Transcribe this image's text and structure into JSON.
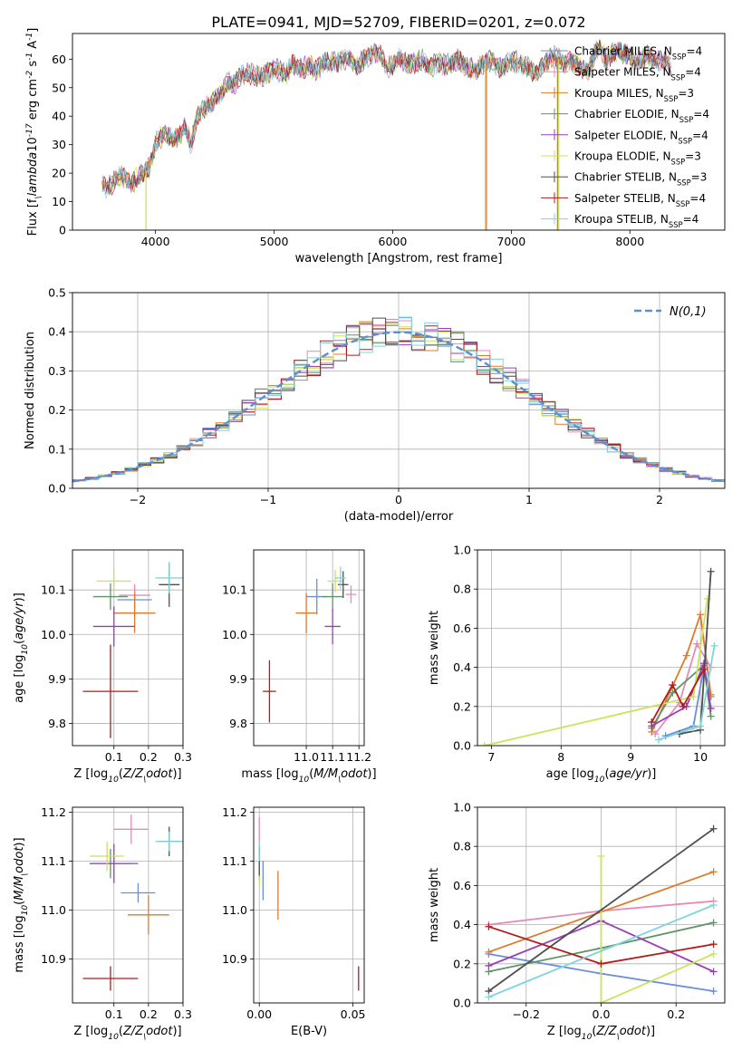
{
  "figure_title": "PLATE=0941, MJD=52709, FIBERID=0201, z=0.072",
  "models": [
    {
      "name": "Chabrier MILES, N$_{SSP}$=4",
      "display": "Chabrier MILES, N",
      "sub": "SSP",
      "suffix": "=4",
      "color": "#6a8fd8"
    },
    {
      "name": "Salpeter MILES, N$_{SSP}$=4",
      "display": "Salpeter MILES, N",
      "sub": "SSP",
      "suffix": "=4",
      "color": "#e38db5"
    },
    {
      "name": "Kroupa MILES, N$_{SSP}$=3",
      "display": "Kroupa MILES, N",
      "sub": "SSP",
      "suffix": "=3",
      "color": "#dd7b2a"
    },
    {
      "name": "Chabrier ELODIE, N$_{SSP}$=4",
      "display": "Chabrier ELODIE, N",
      "sub": "SSP",
      "suffix": "=4",
      "color": "#5f9466"
    },
    {
      "name": "Salpeter ELODIE, N$_{SSP}$=4",
      "display": "Salpeter ELODIE, N",
      "sub": "SSP",
      "suffix": "=4",
      "color": "#9a3db8"
    },
    {
      "name": "Kroupa ELODIE, N$_{SSP}$=3",
      "display": "Kroupa ELODIE, N",
      "sub": "SSP",
      "suffix": "=3",
      "color": "#cde25a"
    },
    {
      "name": "Chabrier STELIB, N$_{SSP}$=3",
      "display": "Chabrier STELIB, N",
      "sub": "SSP",
      "suffix": "=3",
      "color": "#4e4e4e"
    },
    {
      "name": "Salpeter STELIB, N$_{SSP}$=4",
      "display": "Salpeter STELIB, N",
      "sub": "SSP",
      "suffix": "=4",
      "color": "#b41b1b"
    },
    {
      "name": "Kroupa STELIB, N$_{SSP}$=4",
      "display": "Kroupa STELIB, N",
      "sub": "SSP",
      "suffix": "=4",
      "color": "#7fd5dc"
    }
  ],
  "chart_data": [
    {
      "type": "line",
      "id": "spectrum",
      "xlabel": "wavelength [Angstrom, rest frame]",
      "ylabel": "Flux [f$_\\lambda$10$^{-17}$ erg cm$^{-2}$ s$^{-1}$ A$^{-1}$]",
      "xlim": [
        3300,
        8800
      ],
      "ylim": [
        0,
        69
      ],
      "xticks": [
        4000,
        5000,
        6000,
        7000,
        8000
      ],
      "yticks": [
        0,
        10,
        20,
        30,
        40,
        50,
        60
      ],
      "grid": false,
      "legend_placement": "top-right",
      "x": [
        3550,
        3600,
        3650,
        3700,
        3750,
        3800,
        3850,
        3900,
        3950,
        4000,
        4050,
        4100,
        4150,
        4200,
        4250,
        4300,
        4350,
        4400,
        4450,
        4500,
        4550,
        4600,
        4650,
        4700,
        4750,
        4800,
        4850,
        4900,
        4950,
        5000,
        5050,
        5100,
        5150,
        5200,
        5250,
        5300,
        5350,
        5400,
        5450,
        5500,
        5550,
        5600,
        5650,
        5700,
        5750,
        5800,
        5850,
        5900,
        5950,
        6000,
        6050,
        6100,
        6150,
        6200,
        6250,
        6300,
        6350,
        6400,
        6450,
        6500,
        6550,
        6600,
        6650,
        6700,
        6750,
        6800,
        6850,
        6900,
        6950,
        7000,
        7050,
        7100,
        7150,
        7200,
        7250,
        7300,
        7350,
        7400,
        7450,
        7500,
        7550,
        7600,
        7650,
        7700,
        7750,
        7800,
        7850,
        7900,
        7950,
        8000,
        8050,
        8100,
        8150,
        8200,
        8250,
        8300,
        8350
      ],
      "flux": [
        16,
        15,
        17,
        19,
        18,
        16,
        19,
        20,
        22,
        30,
        33,
        34,
        32,
        33,
        36,
        30,
        40,
        42,
        44,
        46,
        48,
        52,
        51,
        53,
        55,
        55,
        54,
        54,
        55,
        57,
        56,
        55,
        58,
        57,
        57,
        58,
        56,
        58,
        59,
        59,
        59,
        60,
        60,
        57,
        60,
        61,
        62,
        62,
        57,
        58,
        60,
        59,
        58,
        59,
        60,
        56,
        58,
        59,
        58,
        58,
        60,
        58,
        57,
        56,
        58,
        59,
        59,
        57,
        58,
        59,
        59,
        58,
        57,
        55,
        57,
        59,
        61,
        60,
        58,
        59,
        58,
        57,
        55,
        62,
        64,
        60,
        62,
        63,
        62,
        61,
        59,
        60,
        61,
        59,
        60,
        60,
        57
      ],
      "dips": [
        {
          "model": "Kroupa ELODIE, N$_{SSP}$=3",
          "x": 3920,
          "y": 0
        },
        {
          "model": "Kroupa ELODIE, N$_{SSP}$=3",
          "x": 6780,
          "y": 0
        },
        {
          "model": "Kroupa MILES, N$_{SSP}$=3",
          "x": 6790,
          "y": 0
        },
        {
          "model": "Kroupa MILES, N$_{SSP}$=3",
          "x": 7390,
          "y": 0
        },
        {
          "model": "Kroupa ELODIE, N$_{SSP}$=3",
          "x": 7400,
          "y": 0
        }
      ]
    },
    {
      "type": "histogram",
      "id": "residuals",
      "xlabel": "(data-model)/error",
      "ylabel": "Normed distribution",
      "xlim": [
        -2.5,
        2.5
      ],
      "ylim": [
        0,
        0.5
      ],
      "xticks": [
        -2,
        -1,
        0,
        1,
        2
      ],
      "yticks": [
        0.0,
        0.1,
        0.2,
        0.3,
        0.4,
        0.5
      ],
      "grid": true,
      "bin_width": 0.1,
      "bin_left_edges": [
        -2.5,
        -2.4,
        -2.3,
        -2.2,
        -2.1,
        -2.0,
        -1.9,
        -1.8,
        -1.7,
        -1.6,
        -1.5,
        -1.4,
        -1.3,
        -1.2,
        -1.1,
        -1.0,
        -0.9,
        -0.8,
        -0.7,
        -0.6,
        -0.5,
        -0.4,
        -0.3,
        -0.2,
        -0.1,
        0.0,
        0.1,
        0.2,
        0.3,
        0.4,
        0.5,
        0.6,
        0.7,
        0.8,
        0.9,
        1.0,
        1.1,
        1.2,
        1.3,
        1.4,
        1.5,
        1.6,
        1.7,
        1.8,
        1.9,
        2.0,
        2.1,
        2.2,
        2.3,
        2.4
      ],
      "reference_curve": {
        "label": "$\\mathcal{N}(0,1)$",
        "mean": 0,
        "sigma": 1,
        "color": "#5b8fd6"
      },
      "legend_placement": "top-right"
    },
    {
      "type": "errorbar",
      "id": "age-vs-Z",
      "xlabel": "Z [log$_{10}$($Z/Z_\\odot$)]",
      "ylabel": "age  [log$_{10}$($age/yr$)]",
      "xlim": [
        -0.02,
        0.3
      ],
      "ylim": [
        9.75,
        10.19
      ],
      "xticks": [
        0.1,
        0.2,
        0.3
      ],
      "yticks": [
        9.8,
        9.9,
        10.0,
        10.1
      ],
      "grid": true,
      "points": [
        {
          "model": "Chabrier MILES, N$_{SSP}$=4",
          "x": 0.16,
          "xerr": 0.05,
          "y": 10.078,
          "yerr": 0.025
        },
        {
          "model": "Salpeter MILES, N$_{SSP}$=4",
          "x": 0.16,
          "xerr": 0.045,
          "y": 10.088,
          "yerr": 0.025
        },
        {
          "model": "Kroupa MILES, N$_{SSP}$=3",
          "x": 0.16,
          "xerr": 0.06,
          "y": 10.048,
          "yerr": 0.045
        },
        {
          "model": "Chabrier ELODIE, N$_{SSP}$=4",
          "x": 0.09,
          "xerr": 0.05,
          "y": 10.085,
          "yerr": 0.03
        },
        {
          "model": "Salpeter ELODIE, N$_{SSP}$=4",
          "x": 0.1,
          "xerr": 0.06,
          "y": 10.018,
          "yerr": 0.045
        },
        {
          "model": "Kroupa ELODIE, N$_{SSP}$=3",
          "x": 0.1,
          "xerr": 0.05,
          "y": 10.12,
          "yerr": 0.025
        },
        {
          "model": "Chabrier STELIB, N$_{SSP}$=3",
          "x": 0.26,
          "xerr": 0.03,
          "y": 10.112,
          "yerr": 0.05
        },
        {
          "model": "Salpeter STELIB, N$_{SSP}$=4",
          "x": 0.09,
          "xerr": 0.08,
          "y": 9.872,
          "yerr": 0.105
        },
        {
          "model": "Kroupa STELIB, N$_{SSP}$=4",
          "x": 0.26,
          "xerr": 0.04,
          "y": 10.127,
          "yerr": 0.035
        }
      ]
    },
    {
      "type": "errorbar",
      "id": "age-vs-mass",
      "xlabel": "mass [log$_{10}$($M/M_\\odot$)]",
      "ylabel": "",
      "xlim": [
        10.8,
        11.22
      ],
      "ylim": [
        9.75,
        10.19
      ],
      "xticks": [
        11.0,
        11.1,
        11.2
      ],
      "yticks": [
        9.8,
        9.9,
        10.0,
        10.1
      ],
      "grid": true,
      "points": [
        {
          "model": "Chabrier MILES, N$_{SSP}$=4",
          "x": 11.04,
          "xerr": 0.04,
          "y": 10.085,
          "yerr": 0.04
        },
        {
          "model": "Salpeter MILES, N$_{SSP}$=4",
          "x": 11.17,
          "xerr": 0.02,
          "y": 10.09,
          "yerr": 0.02
        },
        {
          "model": "Kroupa MILES, N$_{SSP}$=3",
          "x": 11.0,
          "xerr": 0.04,
          "y": 10.048,
          "yerr": 0.045
        },
        {
          "model": "Chabrier ELODIE, N$_{SSP}$=4",
          "x": 11.1,
          "xerr": 0.04,
          "y": 10.085,
          "yerr": 0.03
        },
        {
          "model": "Salpeter ELODIE, N$_{SSP}$=4",
          "x": 11.1,
          "xerr": 0.03,
          "y": 10.018,
          "yerr": 0.04
        },
        {
          "model": "Kroupa ELODIE, N$_{SSP}$=3",
          "x": 11.11,
          "xerr": 0.03,
          "y": 10.12,
          "yerr": 0.025
        },
        {
          "model": "Chabrier STELIB, N$_{SSP}$=3",
          "x": 11.14,
          "xerr": 0.02,
          "y": 10.112,
          "yerr": 0.03
        },
        {
          "model": "Salpeter STELIB, N$_{SSP}$=4",
          "x": 10.86,
          "xerr": 0.025,
          "y": 9.872,
          "yerr": 0.07
        },
        {
          "model": "Kroupa STELIB, N$_{SSP}$=4",
          "x": 11.13,
          "xerr": 0.02,
          "y": 10.127,
          "yerr": 0.025
        }
      ]
    },
    {
      "type": "line",
      "id": "weight-vs-age",
      "xlabel": "age  [log$_{10}$($age/yr$)]",
      "ylabel": "mass weight",
      "xlim": [
        6.8,
        10.35
      ],
      "ylim": [
        0,
        1.0
      ],
      "xticks": [
        7,
        8,
        9,
        10
      ],
      "yticks": [
        0.0,
        0.2,
        0.4,
        0.6,
        0.8,
        1.0
      ],
      "grid": true,
      "series": [
        {
          "name": "Chabrier MILES, N$_{SSP}$=4",
          "x": [
            9.5,
            9.9,
            10.05,
            10.15
          ],
          "y": [
            0.05,
            0.1,
            0.4,
            0.25
          ]
        },
        {
          "name": "Salpeter MILES, N$_{SSP}$=4",
          "x": [
            9.35,
            9.7,
            9.95,
            10.15
          ],
          "y": [
            0.06,
            0.22,
            0.52,
            0.4
          ]
        },
        {
          "name": "Kroupa MILES, N$_{SSP}$=3",
          "x": [
            9.3,
            9.8,
            10.0,
            10.15
          ],
          "y": [
            0.07,
            0.46,
            0.67,
            0.26
          ]
        },
        {
          "name": "Chabrier ELODIE, N$_{SSP}$=4",
          "x": [
            9.3,
            9.6,
            10.05,
            10.15
          ],
          "y": [
            0.09,
            0.27,
            0.41,
            0.15
          ]
        },
        {
          "name": "Salpeter ELODIE, N$_{SSP}$=4",
          "x": [
            9.3,
            9.8,
            10.05,
            10.15
          ],
          "y": [
            0.1,
            0.2,
            0.42,
            0.19
          ]
        },
        {
          "name": "Kroupa ELODIE, N$_{SSP}$=3",
          "x": [
            6.9,
            9.9,
            10.1
          ],
          "y": [
            0.0,
            0.25,
            0.75
          ]
        },
        {
          "name": "Chabrier STELIB, N$_{SSP}$=3",
          "x": [
            9.7,
            10.0,
            10.15
          ],
          "y": [
            0.06,
            0.08,
            0.89
          ]
        },
        {
          "name": "Salpeter STELIB, N$_{SSP}$=4",
          "x": [
            9.3,
            9.6,
            9.75,
            10.05
          ],
          "y": [
            0.12,
            0.31,
            0.2,
            0.39
          ]
        },
        {
          "name": "Kroupa STELIB, N$_{SSP}$=4",
          "x": [
            9.4,
            9.9,
            10.0,
            10.2
          ],
          "y": [
            0.03,
            0.09,
            0.1,
            0.51
          ]
        }
      ]
    },
    {
      "type": "errorbar",
      "id": "mass-vs-Z",
      "xlabel": "Z [log$_{10}$($Z/Z_\\odot$)]",
      "ylabel": "mass [log$_{10}$($M/M_\\odot$)]",
      "xlim": [
        -0.02,
        0.3
      ],
      "ylim": [
        10.81,
        11.21
      ],
      "xticks": [
        0.1,
        0.2,
        0.3
      ],
      "yticks": [
        10.9,
        11.0,
        11.1,
        11.2
      ],
      "grid": true,
      "points": [
        {
          "model": "Chabrier MILES, N$_{SSP}$=4",
          "x": 0.17,
          "xerr": 0.05,
          "y": 11.035,
          "yerr": 0.02
        },
        {
          "model": "Salpeter MILES, N$_{SSP}$=4",
          "x": 0.15,
          "xerr": 0.05,
          "y": 11.165,
          "yerr": 0.03
        },
        {
          "model": "Kroupa MILES, N$_{SSP}$=3",
          "x": 0.2,
          "xerr": 0.06,
          "y": 10.99,
          "yerr": 0.04
        },
        {
          "model": "Chabrier ELODIE, N$_{SSP}$=4",
          "x": 0.09,
          "xerr": 0.06,
          "y": 11.095,
          "yerr": 0.03
        },
        {
          "model": "Salpeter ELODIE, N$_{SSP}$=4",
          "x": 0.1,
          "xerr": 0.07,
          "y": 11.095,
          "yerr": 0.04
        },
        {
          "model": "Kroupa ELODIE, N$_{SSP}$=3",
          "x": 0.08,
          "xerr": 0.05,
          "y": 11.11,
          "yerr": 0.03
        },
        {
          "model": "Chabrier STELIB, N$_{SSP}$=3",
          "x": 0.26,
          "xerr": 0.03,
          "y": 11.14,
          "yerr": 0.03
        },
        {
          "model": "Salpeter STELIB, N$_{SSP}$=4",
          "x": 0.09,
          "xerr": 0.08,
          "y": 10.86,
          "yerr": 0.025
        },
        {
          "model": "Kroupa STELIB, N$_{SSP}$=4",
          "x": 0.26,
          "xerr": 0.04,
          "y": 11.14,
          "yerr": 0.02
        }
      ]
    },
    {
      "type": "errorbar",
      "id": "mass-vs-ebv",
      "xlabel": "E(B-V)",
      "ylabel": "",
      "xlim": [
        -0.003,
        0.056
      ],
      "ylim": [
        10.81,
        11.21
      ],
      "xticks": [
        0.0,
        0.05
      ],
      "yticks": [
        10.9,
        11.0,
        11.1,
        11.2
      ],
      "grid": true,
      "points": [
        {
          "model": "Chabrier MILES, N$_{SSP}$=4",
          "x": 0.002,
          "y": 11.06,
          "yerr": 0.04
        },
        {
          "model": "Salpeter MILES, N$_{SSP}$=4",
          "x": 0.0,
          "y": 11.16,
          "yerr": 0.03
        },
        {
          "model": "Kroupa MILES, N$_{SSP}$=3",
          "x": 0.01,
          "y": 11.03,
          "yerr": 0.05
        },
        {
          "model": "Chabrier ELODIE, N$_{SSP}$=4",
          "x": 0.0,
          "y": 11.09,
          "yerr": 0.03
        },
        {
          "model": "Salpeter ELODIE, N$_{SSP}$=4",
          "x": 0.0,
          "y": 11.1,
          "yerr": 0.03
        },
        {
          "model": "Kroupa ELODIE, N$_{SSP}$=3",
          "x": 0.0,
          "y": 11.08,
          "yerr": 0.03
        },
        {
          "model": "Chabrier STELIB, N$_{SSP}$=3",
          "x": 0.0,
          "y": 11.1,
          "yerr": 0.03
        },
        {
          "model": "Salpeter STELIB, N$_{SSP}$=4",
          "x": 0.053,
          "y": 10.86,
          "yerr": 0.025
        },
        {
          "model": "Kroupa STELIB, N$_{SSP}$=4",
          "x": 0.0,
          "y": 11.12,
          "yerr": 0.02
        }
      ]
    },
    {
      "type": "line",
      "id": "weight-vs-Z",
      "xlabel": "Z [log$_{10}$($Z/Z_\\odot$)]",
      "ylabel": "mass weight",
      "xlim": [
        -0.33,
        0.33
      ],
      "ylim": [
        0,
        1.0
      ],
      "xticks": [
        -0.2,
        0.0,
        0.2
      ],
      "yticks": [
        0.0,
        0.2,
        0.4,
        0.6,
        0.8,
        1.0
      ],
      "grid": true,
      "series": [
        {
          "name": "Chabrier MILES, N$_{SSP}$=4",
          "x": [
            -0.3,
            0.0,
            0.3
          ],
          "y": [
            0.25,
            0.15,
            0.06
          ]
        },
        {
          "name": "Salpeter MILES, N$_{SSP}$=4",
          "x": [
            -0.3,
            0.0,
            0.3
          ],
          "y": [
            0.4,
            0.47,
            0.52
          ]
        },
        {
          "name": "Kroupa MILES, N$_{SSP}$=3",
          "x": [
            -0.3,
            0.3
          ],
          "y": [
            0.26,
            0.67
          ]
        },
        {
          "name": "Chabrier ELODIE, N$_{SSP}$=4",
          "x": [
            -0.3,
            0.0,
            0.3
          ],
          "y": [
            0.16,
            0.28,
            0.41
          ]
        },
        {
          "name": "Salpeter ELODIE, N$_{SSP}$=4",
          "x": [
            -0.3,
            0.0,
            0.3
          ],
          "y": [
            0.19,
            0.42,
            0.16
          ]
        },
        {
          "name": "Kroupa ELODIE, N$_{SSP}$=3",
          "x": [
            0.0,
            0.0,
            0.3
          ],
          "y": [
            0.75,
            0.0,
            0.25
          ]
        },
        {
          "name": "Chabrier STELIB, N$_{SSP}$=3",
          "x": [
            -0.3,
            0.3
          ],
          "y": [
            0.06,
            0.89
          ]
        },
        {
          "name": "Salpeter STELIB, N$_{SSP}$=4",
          "x": [
            -0.3,
            0.0,
            0.3
          ],
          "y": [
            0.39,
            0.2,
            0.3
          ]
        },
        {
          "name": "Kroupa STELIB, N$_{SSP}$=4",
          "x": [
            -0.3,
            0.3
          ],
          "y": [
            0.03,
            0.5
          ]
        }
      ]
    }
  ]
}
